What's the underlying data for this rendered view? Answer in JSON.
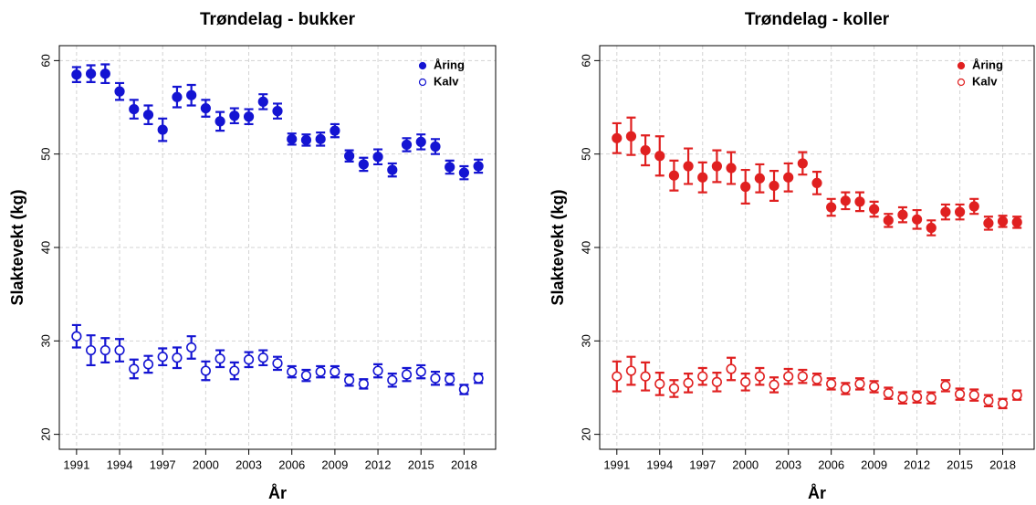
{
  "chart_data": [
    {
      "type": "scatter",
      "title": "Trøndelag - bukker",
      "x_label": "År",
      "y_label": "Slaktevekt (kg)",
      "x": [
        1991,
        1992,
        1993,
        1994,
        1995,
        1996,
        1997,
        1998,
        1999,
        2000,
        2001,
        2002,
        2003,
        2004,
        2005,
        2006,
        2007,
        2008,
        2009,
        2010,
        2011,
        2012,
        2013,
        2014,
        2015,
        2016,
        2017,
        2018,
        2019
      ],
      "xlim": [
        1989.8,
        2020.2
      ],
      "xticks": [
        1991,
        1994,
        1997,
        2000,
        2003,
        2006,
        2009,
        2012,
        2015,
        2018
      ],
      "ylim": [
        18.4,
        61.6
      ],
      "yticks": [
        20,
        30,
        40,
        50,
        60
      ],
      "grid": true,
      "legend": "top-right",
      "series": [
        {
          "name": "Åring",
          "color": "#1414d2",
          "marker": "filled",
          "values": [
            58.5,
            58.6,
            58.6,
            56.7,
            54.8,
            54.2,
            52.6,
            56.1,
            56.3,
            54.9,
            53.5,
            54.1,
            54.0,
            55.6,
            54.6,
            51.6,
            51.5,
            51.6,
            52.5,
            49.8,
            48.9,
            49.7,
            48.3,
            51.0,
            51.3,
            50.8,
            48.6,
            48.0,
            48.7
          ],
          "errors": [
            0.8,
            0.9,
            1.0,
            0.9,
            1.0,
            1.0,
            1.2,
            1.1,
            1.1,
            0.9,
            1.0,
            0.8,
            0.8,
            0.8,
            0.8,
            0.6,
            0.6,
            0.7,
            0.7,
            0.6,
            0.7,
            0.8,
            0.7,
            0.7,
            0.8,
            0.8,
            0.7,
            0.7,
            0.7
          ]
        },
        {
          "name": "Kalv",
          "color": "#1414d2",
          "marker": "open",
          "values": [
            30.5,
            29.0,
            29.0,
            29.0,
            27.0,
            27.5,
            28.3,
            28.2,
            29.3,
            26.8,
            28.1,
            26.8,
            28.0,
            28.2,
            27.6,
            26.7,
            26.3,
            26.7,
            26.7,
            25.8,
            25.4,
            26.8,
            25.8,
            26.4,
            26.7,
            26.0,
            25.9,
            24.8,
            26.0
          ],
          "errors": [
            1.2,
            1.6,
            1.3,
            1.2,
            1.0,
            0.9,
            0.9,
            1.1,
            1.2,
            1.0,
            0.9,
            0.9,
            0.8,
            0.8,
            0.7,
            0.6,
            0.6,
            0.6,
            0.6,
            0.6,
            0.5,
            0.7,
            0.7,
            0.7,
            0.7,
            0.7,
            0.6,
            0.5,
            0.5
          ]
        }
      ]
    },
    {
      "type": "scatter",
      "title": "Trøndelag - koller",
      "x_label": "År",
      "y_label": "Slaktevekt (kg)",
      "x": [
        1991,
        1992,
        1993,
        1994,
        1995,
        1996,
        1997,
        1998,
        1999,
        2000,
        2001,
        2002,
        2003,
        2004,
        2005,
        2006,
        2007,
        2008,
        2009,
        2010,
        2011,
        2012,
        2013,
        2014,
        2015,
        2016,
        2017,
        2018,
        2019
      ],
      "xlim": [
        1989.8,
        2020.2
      ],
      "xticks": [
        1991,
        1994,
        1997,
        2000,
        2003,
        2006,
        2009,
        2012,
        2015,
        2018
      ],
      "ylim": [
        18.4,
        61.6
      ],
      "yticks": [
        20,
        30,
        40,
        50,
        60
      ],
      "grid": true,
      "legend": "top-right",
      "series": [
        {
          "name": "Åring",
          "color": "#e02020",
          "marker": "filled",
          "values": [
            51.7,
            51.9,
            50.4,
            49.8,
            47.7,
            48.7,
            47.5,
            48.7,
            48.5,
            46.5,
            47.4,
            46.6,
            47.5,
            49.0,
            46.9,
            44.3,
            45.0,
            44.9,
            44.1,
            42.9,
            43.5,
            43.0,
            42.1,
            43.8,
            43.8,
            44.4,
            42.6,
            42.8,
            42.7
          ],
          "errors": [
            1.6,
            2.0,
            1.6,
            2.1,
            1.6,
            1.9,
            1.6,
            1.7,
            1.7,
            1.8,
            1.5,
            1.6,
            1.5,
            1.2,
            1.2,
            0.9,
            0.9,
            1.0,
            0.8,
            0.7,
            0.8,
            1.0,
            0.8,
            0.8,
            0.8,
            0.8,
            0.7,
            0.6,
            0.6
          ]
        },
        {
          "name": "Kalv",
          "color": "#e02020",
          "marker": "open",
          "values": [
            26.2,
            26.8,
            26.2,
            25.4,
            24.9,
            25.5,
            26.2,
            25.6,
            27.0,
            25.6,
            26.2,
            25.3,
            26.2,
            26.2,
            25.9,
            25.4,
            24.9,
            25.4,
            25.1,
            24.4,
            23.9,
            24.0,
            23.9,
            25.2,
            24.3,
            24.2,
            23.6,
            23.3,
            24.2
          ],
          "errors": [
            1.6,
            1.5,
            1.5,
            1.2,
            0.9,
            1.0,
            0.9,
            1.0,
            1.2,
            0.9,
            0.9,
            0.8,
            0.8,
            0.7,
            0.6,
            0.6,
            0.6,
            0.6,
            0.6,
            0.6,
            0.6,
            0.6,
            0.6,
            0.6,
            0.6,
            0.6,
            0.6,
            0.5,
            0.5
          ]
        }
      ]
    }
  ]
}
